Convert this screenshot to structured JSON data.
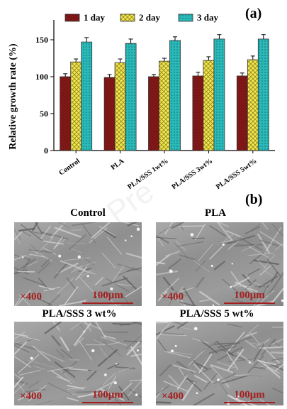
{
  "panel_a_label": "(a)",
  "panel_b_label": "(b)",
  "watermark": "Pre",
  "chart_data": {
    "type": "bar",
    "categories": [
      "Control",
      "PLA",
      "PLA/SSS 1wt%",
      "PLA/SSS 3wt%",
      "PLA/SSS 5wt%"
    ],
    "series": [
      {
        "name": "1 day",
        "values": [
          100,
          99,
          100,
          101,
          101
        ],
        "errors": [
          4,
          4,
          3,
          5,
          4
        ],
        "color": "#8b1a1a"
      },
      {
        "name": "2 day",
        "values": [
          120,
          119,
          121,
          122,
          123
        ],
        "errors": [
          4,
          5,
          4,
          5,
          5
        ],
        "color": "#f0e24a"
      },
      {
        "name": "3 day",
        "values": [
          147,
          145,
          149,
          151,
          151
        ],
        "errors": [
          6,
          6,
          5,
          6,
          6
        ],
        "color": "#2ab8b8"
      }
    ],
    "ylabel": "Relative growth rate (%)",
    "ylim": [
      0,
      175
    ],
    "yticks": [
      0,
      50,
      100,
      150
    ],
    "legend_position": "top"
  },
  "images": [
    {
      "title": "Control",
      "magnification": "×400",
      "scale": "100μm"
    },
    {
      "title": "PLA",
      "magnification": "×400",
      "scale": "100μm"
    },
    {
      "title": "PLA/SSS 3 wt%",
      "magnification": "×400",
      "scale": "100μm"
    },
    {
      "title": "PLA/SSS 5 wt%",
      "magnification": "×400",
      "scale": "100μm"
    }
  ]
}
